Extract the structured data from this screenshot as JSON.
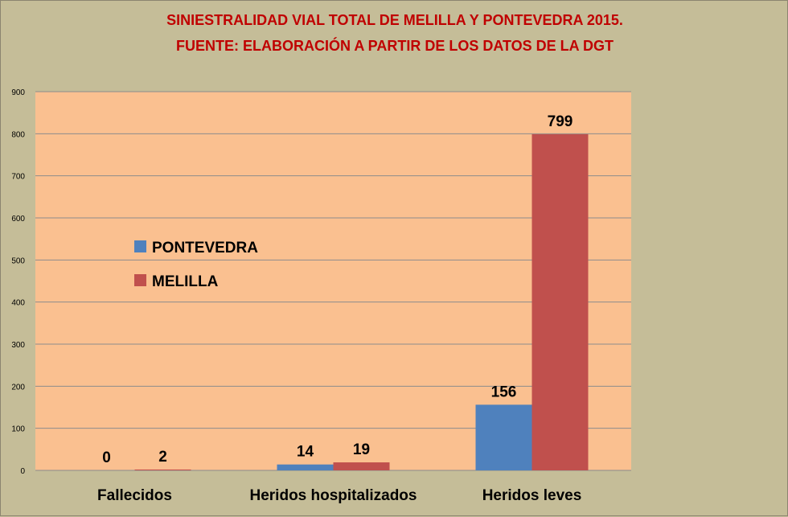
{
  "chart_data": {
    "type": "bar",
    "title": "SINIESTRALIDAD VIAL TOTAL DE MELILLA Y PONTEVEDRA  2015.",
    "subtitle": "FUENTE: ELABORACIÓN A PARTIR DE LOS DATOS DE LA DGT",
    "categories": [
      "Fallecidos",
      "Heridos hospitalizados",
      "Heridos leves"
    ],
    "series": [
      {
        "name": "PONTEVEDRA",
        "values": [
          0,
          14,
          156
        ],
        "color": "#4f81bd"
      },
      {
        "name": "MELILLA",
        "values": [
          2,
          19,
          799
        ],
        "color": "#c0504d"
      }
    ],
    "ylim": [
      0,
      900
    ],
    "yticks": [
      0,
      100,
      200,
      300,
      400,
      500,
      600,
      700,
      800,
      900
    ],
    "xlabel": "",
    "ylabel": "",
    "grid": true,
    "legend_position": "left-inside",
    "plot_background": "#fac090",
    "gridline_color": "#8c8c8c"
  }
}
